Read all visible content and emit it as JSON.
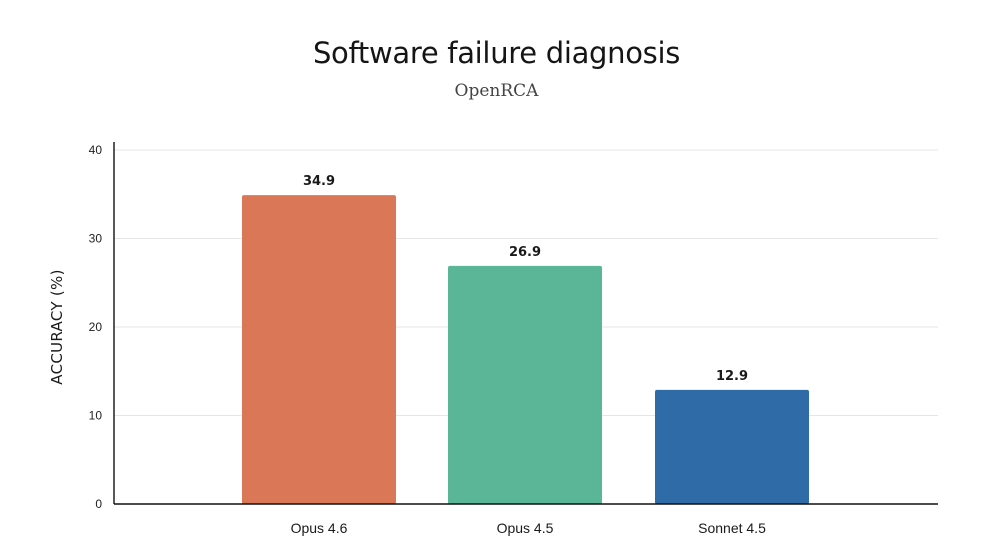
{
  "chart_data": {
    "type": "bar",
    "title": "Software failure diagnosis",
    "subtitle": "OpenRCA",
    "ylabel": "ACCURACY (%)",
    "xlabel": "",
    "categories": [
      "Opus 4.6",
      "Opus 4.5",
      "Sonnet 4.5"
    ],
    "values": [
      34.9,
      26.9,
      12.9
    ],
    "value_labels": [
      "34.9",
      "26.9",
      "12.9"
    ],
    "colors": [
      "#D97757",
      "#5BB597",
      "#2F6BA6"
    ],
    "ylim": [
      0,
      40
    ],
    "yticks": [
      0,
      10,
      20,
      30,
      40
    ],
    "grid": true,
    "legend": "none"
  }
}
